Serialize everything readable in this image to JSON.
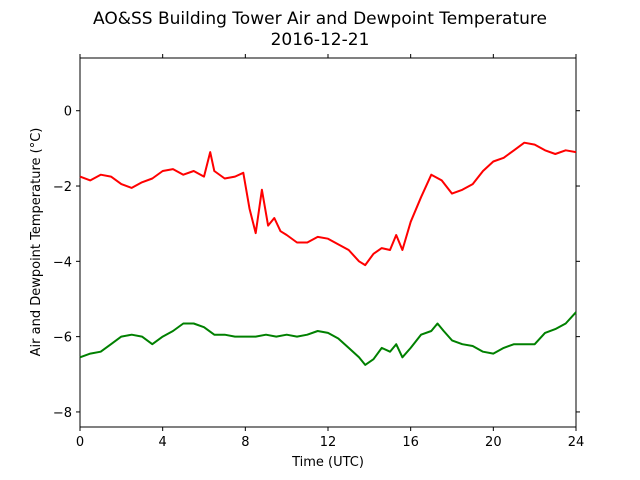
{
  "chart_data": {
    "type": "line",
    "title": "AO&SS Building Tower Air and Dewpoint Temperature",
    "subtitle": "2016-12-21",
    "xlabel": "Time (UTC)",
    "ylabel": "Air and Dewpoint Temperature (°C)",
    "xlim": [
      0,
      24
    ],
    "ylim": [
      -8.4,
      1.4
    ],
    "xticks": [
      0,
      4,
      8,
      12,
      16,
      20,
      24
    ],
    "xtick_labels": [
      "0",
      "4",
      "8",
      "12",
      "16",
      "20",
      "24"
    ],
    "yticks": [
      0,
      -2,
      -4,
      -6,
      -8
    ],
    "ytick_labels": [
      "0",
      "−2",
      "−4",
      "−6",
      "−8"
    ],
    "grid": false,
    "series": [
      {
        "color": "#ff0000",
        "x": [
          0,
          0.5,
          1.0,
          1.5,
          2.0,
          2.5,
          3.0,
          3.5,
          4.0,
          4.5,
          5.0,
          5.5,
          6.0,
          6.3,
          6.5,
          7.0,
          7.5,
          7.9,
          8.2,
          8.5,
          8.8,
          9.1,
          9.4,
          9.7,
          10.0,
          10.5,
          11.0,
          11.5,
          12.0,
          12.5,
          13.0,
          13.5,
          13.8,
          14.2,
          14.6,
          15.0,
          15.3,
          15.6,
          16.0,
          16.5,
          17.0,
          17.5,
          18.0,
          18.5,
          19.0,
          19.5,
          20.0,
          20.5,
          21.0,
          21.5,
          22.0,
          22.5,
          23.0,
          23.5,
          24.0
        ],
        "y": [
          -1.75,
          -1.85,
          -1.7,
          -1.75,
          -1.95,
          -2.05,
          -1.9,
          -1.8,
          -1.6,
          -1.55,
          -1.7,
          -1.6,
          -1.75,
          -1.1,
          -1.6,
          -1.8,
          -1.75,
          -1.65,
          -2.6,
          -3.25,
          -2.1,
          -3.05,
          -2.85,
          -3.2,
          -3.3,
          -3.5,
          -3.5,
          -3.35,
          -3.4,
          -3.55,
          -3.7,
          -4.0,
          -4.1,
          -3.8,
          -3.65,
          -3.7,
          -3.3,
          -3.7,
          -2.95,
          -2.3,
          -1.7,
          -1.85,
          -2.2,
          -2.1,
          -1.95,
          -1.6,
          -1.35,
          -1.25,
          -1.05,
          -0.85,
          -0.9,
          -1.05,
          -1.15,
          -1.05,
          -1.1
        ]
      },
      {
        "color": "#008000",
        "x": [
          0,
          0.5,
          1.0,
          1.5,
          2.0,
          2.5,
          3.0,
          3.5,
          4.0,
          4.5,
          5.0,
          5.5,
          6.0,
          6.5,
          7.0,
          7.5,
          8.0,
          8.5,
          9.0,
          9.5,
          10.0,
          10.5,
          11.0,
          11.5,
          12.0,
          12.5,
          13.0,
          13.5,
          13.8,
          14.2,
          14.6,
          15.0,
          15.3,
          15.6,
          16.0,
          16.5,
          17.0,
          17.3,
          17.6,
          18.0,
          18.5,
          19.0,
          19.5,
          20.0,
          20.5,
          21.0,
          21.5,
          22.0,
          22.5,
          23.0,
          23.5,
          24.0
        ],
        "y": [
          -6.55,
          -6.45,
          -6.4,
          -6.2,
          -6.0,
          -5.95,
          -6.0,
          -6.2,
          -6.0,
          -5.85,
          -5.65,
          -5.65,
          -5.75,
          -5.95,
          -5.95,
          -6.0,
          -6.0,
          -6.0,
          -5.95,
          -6.0,
          -5.95,
          -6.0,
          -5.95,
          -5.85,
          -5.9,
          -6.05,
          -6.3,
          -6.55,
          -6.75,
          -6.6,
          -6.3,
          -6.4,
          -6.2,
          -6.55,
          -6.3,
          -5.95,
          -5.85,
          -5.65,
          -5.85,
          -6.1,
          -6.2,
          -6.25,
          -6.4,
          -6.45,
          -6.3,
          -6.2,
          -6.2,
          -6.2,
          -5.9,
          -5.8,
          -5.65,
          -5.35
        ]
      }
    ]
  }
}
